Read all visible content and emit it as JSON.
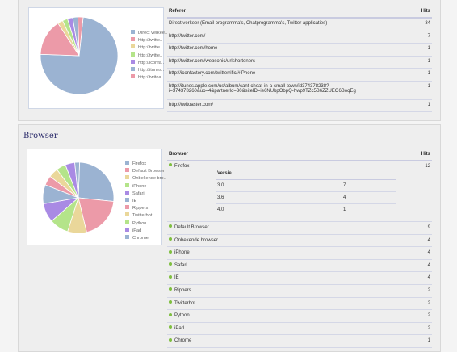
{
  "referer": {
    "header": {
      "col1": "Referer",
      "col2": "Hits"
    },
    "rows": [
      {
        "label": "Direct verkeer (Email programma's, Chatprogramma's, Twitter applicaties)",
        "hits": "34"
      },
      {
        "label": "http://twitter.com/",
        "hits": "7"
      },
      {
        "label": "http://twitter.com/home",
        "hits": "1"
      },
      {
        "label": "http://twitter.com/websonic/urlshorteners",
        "hits": "1"
      },
      {
        "label": "http://iconfactory.com/twitterrific/#iPhone",
        "hits": "1"
      },
      {
        "label": "http://itunes.apple.com/us/album/cant-cheat-in-a-small-town/id374378238?i=374378260&uo=4&partnerId=30&siteID=ie6NUbpObpQ-hwp9TZc5B6ZZUEO6BoqEg",
        "hits": "1"
      },
      {
        "label": "http://twitoaster.com/",
        "hits": "1"
      }
    ],
    "legend": [
      {
        "label": "Direct verkee..",
        "color": "#9bb3d2"
      },
      {
        "label": "http://twitte..",
        "color": "#ec9aa8"
      },
      {
        "label": "http://twitte..",
        "color": "#ead79a"
      },
      {
        "label": "http://twitte..",
        "color": "#b4e48a"
      },
      {
        "label": "http://iconfa..",
        "color": "#a98ae4"
      },
      {
        "label": "http://itunes..",
        "color": "#9bb3d2"
      },
      {
        "label": "http://twitoa..",
        "color": "#ec9aa8"
      }
    ],
    "slices": [
      34,
      7,
      1,
      1,
      1,
      1,
      1
    ]
  },
  "browser": {
    "title": "Browser",
    "header": {
      "col1": "Browser",
      "col2": "Hits"
    },
    "firefox": {
      "label": "Firefox",
      "hits": "12"
    },
    "versions": {
      "header": "Versie",
      "rows": [
        {
          "version": "3.0",
          "hits": "7"
        },
        {
          "version": "3.6",
          "hits": "4"
        },
        {
          "version": "4.0",
          "hits": "1"
        }
      ]
    },
    "rows": [
      {
        "label": "Default Browser",
        "hits": "9"
      },
      {
        "label": "Onbekende browser",
        "hits": "4"
      },
      {
        "label": "iPhone",
        "hits": "4"
      },
      {
        "label": "Safari",
        "hits": "4"
      },
      {
        "label": "IE",
        "hits": "4"
      },
      {
        "label": "Rippers",
        "hits": "2"
      },
      {
        "label": "Twitterbot",
        "hits": "2"
      },
      {
        "label": "Python",
        "hits": "2"
      },
      {
        "label": "iPad",
        "hits": "2"
      },
      {
        "label": "Chrome",
        "hits": "1"
      }
    ],
    "legend": [
      {
        "label": "Firefox",
        "color": "#9bb3d2"
      },
      {
        "label": "Default Browser",
        "color": "#ec9aa8"
      },
      {
        "label": "Onbekende bro..",
        "color": "#ead79a"
      },
      {
        "label": "iPhone",
        "color": "#b4e48a"
      },
      {
        "label": "Safari",
        "color": "#a98ae4"
      },
      {
        "label": "IE",
        "color": "#9bb3d2"
      },
      {
        "label": "Rippers",
        "color": "#ec9aa8"
      },
      {
        "label": "Twitterbot",
        "color": "#ead79a"
      },
      {
        "label": "Python",
        "color": "#b4e48a"
      },
      {
        "label": "iPad",
        "color": "#a98ae4"
      },
      {
        "label": "Chrome",
        "color": "#9bb3d2"
      }
    ],
    "slices": [
      12,
      9,
      4,
      4,
      4,
      4,
      2,
      2,
      2,
      2,
      1
    ]
  }
}
